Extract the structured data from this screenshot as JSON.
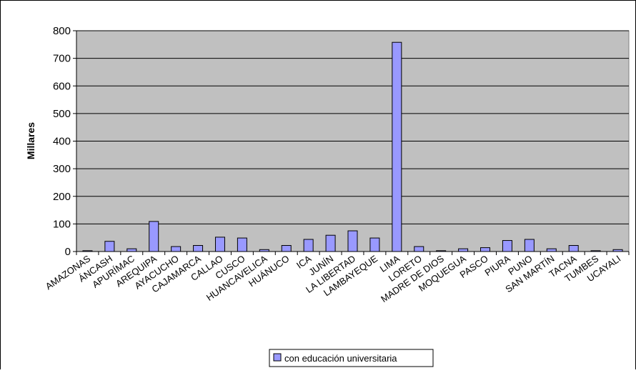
{
  "chart_data": {
    "type": "bar",
    "title": "",
    "xlabel": "",
    "ylabel": "Millares",
    "ylim": [
      0,
      800
    ],
    "yticks": [
      0,
      100,
      200,
      300,
      400,
      500,
      600,
      700,
      800
    ],
    "grid": true,
    "legend_position": "bottom-center",
    "colors": {
      "plot_background": "#c0c0c0",
      "bar_fill": "#9999ff",
      "bar_stroke": "#000000",
      "grid": "#000000"
    },
    "categories": [
      "AMAZONAS",
      "ÁNCASH",
      "APURÍMAC",
      "AREQUIPA",
      "AYACUCHO",
      "CAJAMARCA",
      "CALLAO",
      "CUSCO",
      "HUANCAVELICA",
      "HUÁNUCO",
      "ICA",
      "JUNÍN",
      "LA LIBERTAD",
      "LAMBAYEQUE",
      "LIMA",
      "LORETO",
      "MADRE DE DIOS",
      "MOQUEGUA",
      "PASCO",
      "PIURA",
      "PUNO",
      "SAN MARTÍN",
      "TACNA",
      "TUMBES",
      "UCAYALI"
    ],
    "series": [
      {
        "name": "con educación universitaria",
        "values": [
          3,
          37,
          10,
          109,
          18,
          22,
          52,
          49,
          7,
          22,
          44,
          59,
          75,
          49,
          758,
          18,
          3,
          10,
          14,
          40,
          44,
          10,
          22,
          3,
          7
        ]
      }
    ]
  }
}
